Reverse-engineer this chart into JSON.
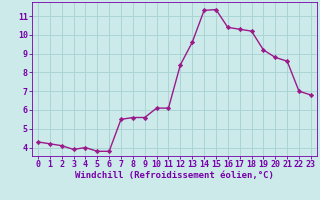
{
  "x": [
    0,
    1,
    2,
    3,
    4,
    5,
    6,
    7,
    8,
    9,
    10,
    11,
    12,
    13,
    14,
    15,
    16,
    17,
    18,
    19,
    20,
    21,
    22,
    23
  ],
  "y": [
    4.3,
    4.2,
    4.1,
    3.9,
    4.0,
    3.8,
    3.8,
    5.5,
    5.6,
    5.6,
    6.1,
    6.1,
    8.4,
    9.6,
    11.3,
    11.35,
    10.4,
    10.3,
    10.2,
    9.2,
    8.8,
    8.6,
    7.0,
    6.8
  ],
  "line_color": "#9b1a8a",
  "marker": "D",
  "marker_size": 2.2,
  "bg_color": "#cceaea",
  "grid_color": "#aad4d4",
  "xlabel": "Windchill (Refroidissement éolien,°C)",
  "xtick_labels": [
    "0",
    "1",
    "2",
    "3",
    "4",
    "5",
    "6",
    "7",
    "8",
    "9",
    "10",
    "11",
    "12",
    "13",
    "14",
    "15",
    "16",
    "17",
    "18",
    "19",
    "20",
    "21",
    "22",
    "23"
  ],
  "xlim": [
    -0.5,
    23.5
  ],
  "ylim": [
    3.55,
    11.75
  ],
  "yticks": [
    4,
    5,
    6,
    7,
    8,
    9,
    10,
    11
  ],
  "axis_label_color": "#7700aa",
  "tick_color": "#7700aa",
  "xlabel_fontsize": 6.5,
  "tick_fontsize": 6.0,
  "linewidth": 1.0
}
